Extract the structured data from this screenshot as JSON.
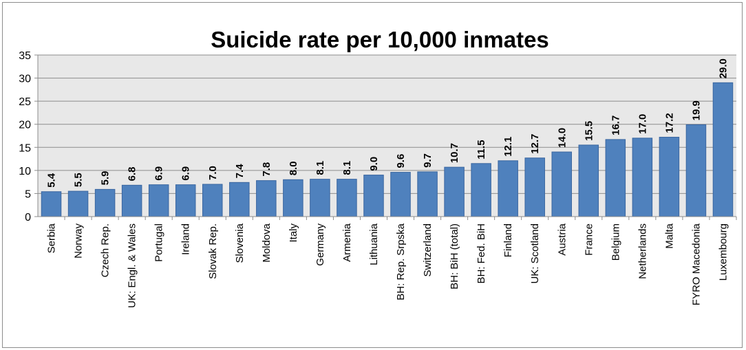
{
  "chart_data": {
    "type": "bar",
    "title": "Suicide rate per 10,000 inmates",
    "xlabel": "",
    "ylabel": "",
    "ylim": [
      0,
      35
    ],
    "yticks": [
      0,
      5,
      10,
      15,
      20,
      25,
      30,
      35
    ],
    "grid": true,
    "legend": "none",
    "bar_color": "#4f81bd",
    "bar_edge_color": "#3a66a0",
    "plot_background": "#e8e8e8",
    "categories": [
      "Serbia",
      "Norway",
      "Czech Rep.",
      "UK: Engl. & Wales",
      "Portugal",
      "Ireland",
      "Slovak Rep.",
      "Slovenia",
      "Moldova",
      "Italy",
      "Germany",
      "Armenia",
      "Lithuania",
      "BH: Rep. Srpska",
      "Switzerland",
      "BH: BiH (total)",
      "BH: Fed. BiH",
      "Finland",
      "UK: Scotland",
      "Austria",
      "France",
      "Belgium",
      "Netherlands",
      "Malta",
      "FYRO Macedonia",
      "Luxembourg"
    ],
    "values": [
      5.4,
      5.5,
      5.9,
      6.8,
      6.9,
      6.9,
      7.0,
      7.4,
      7.8,
      8.0,
      8.1,
      8.1,
      9.0,
      9.6,
      9.7,
      10.7,
      11.5,
      12.1,
      12.7,
      14.0,
      15.5,
      16.7,
      17.0,
      17.2,
      19.9,
      29.0
    ],
    "data_labels": [
      "5.4",
      "5.5",
      "5.9",
      "6.8",
      "6.9",
      "6.9",
      "7.0",
      "7.4",
      "7.8",
      "8.0",
      "8.1",
      "8.1",
      "9.0",
      "9.6",
      "9.7",
      "10.7",
      "11.5",
      "12.1",
      "12.7",
      "14.0",
      "15.5",
      "16.7",
      "17.0",
      "17.2",
      "19.9",
      "29.0"
    ]
  }
}
